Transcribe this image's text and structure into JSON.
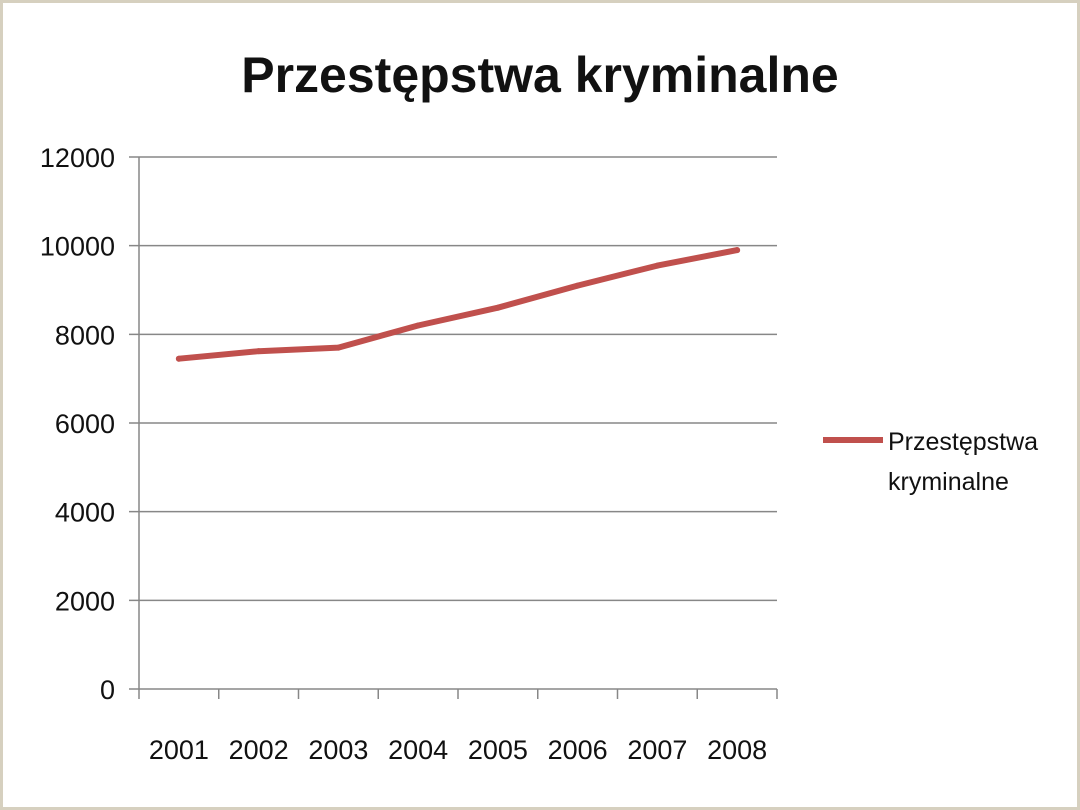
{
  "chart_data": {
    "type": "line",
    "title": "Przestępstwa kryminalne",
    "xlabel": "",
    "ylabel": "",
    "categories": [
      "2001",
      "2002",
      "2003",
      "2004",
      "2005",
      "2006",
      "2007",
      "2008"
    ],
    "ylim": [
      0,
      12000
    ],
    "yticks": [
      "0",
      "2000",
      "4000",
      "6000",
      "8000",
      "10000",
      "12000"
    ],
    "grid": "horizontal",
    "legend_position": "right",
    "series": [
      {
        "name": "Przestępstwa kryminalne",
        "name_lines": [
          "Przestępstwa",
          "kryminalne"
        ],
        "color": "#c0504d",
        "values": [
          7450,
          7620,
          7700,
          8200,
          8600,
          9100,
          9550,
          9900
        ]
      }
    ]
  }
}
